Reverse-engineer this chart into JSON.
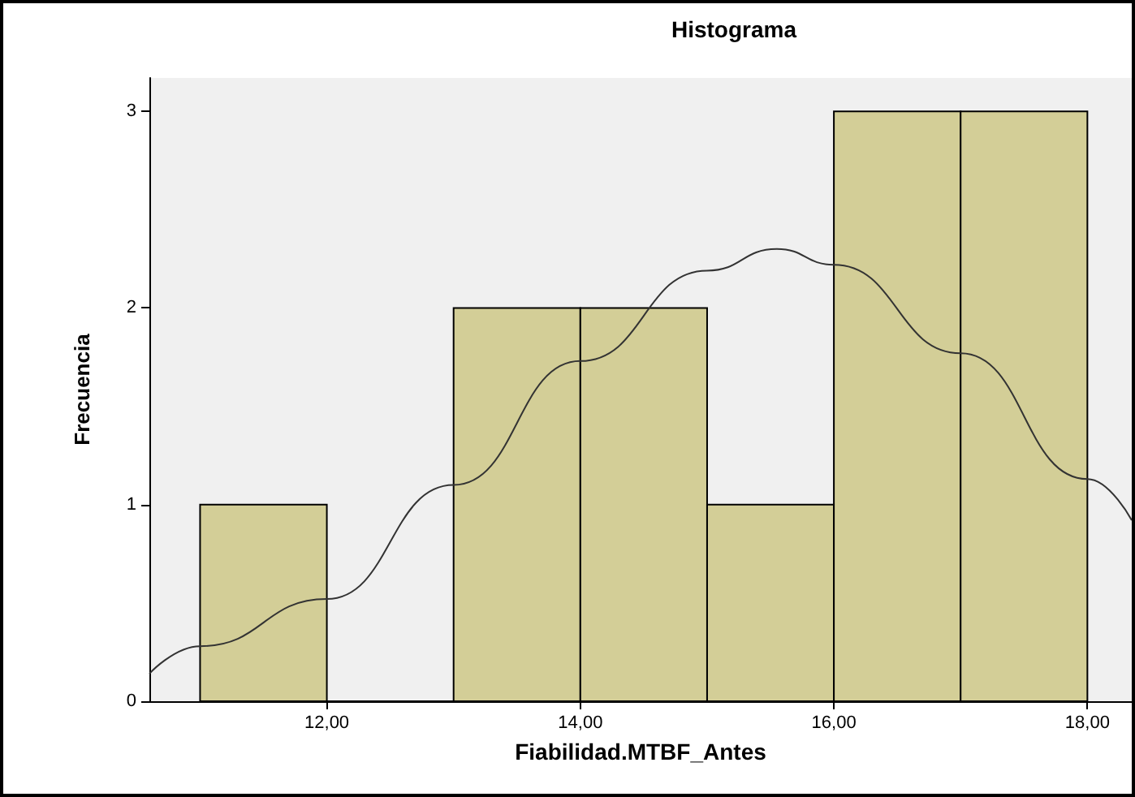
{
  "chart_data": {
    "type": "histogram",
    "title": "Histograma",
    "xlabel": "Fiabilidad.MTBF_Antes",
    "ylabel": "Frecuencia",
    "bins": [
      11,
      12,
      13,
      14,
      15,
      16,
      17,
      18
    ],
    "values": [
      1,
      0,
      2,
      2,
      1,
      3,
      3
    ],
    "color": "#d3ce97",
    "xlim": [
      10.6,
      18.35
    ],
    "xticks": [
      {
        "value": 12,
        "label": "12,00"
      },
      {
        "value": 14,
        "label": "14,00"
      },
      {
        "value": 16,
        "label": "16,00"
      },
      {
        "value": 18,
        "label": "18,00"
      }
    ],
    "ylim": [
      0,
      3.17
    ],
    "yticks": [
      0,
      1,
      2,
      3
    ],
    "grid": false,
    "marker": "none",
    "series": [
      {
        "type": "line",
        "color": "#333333",
        "x": [
          10.6,
          11,
          12,
          13,
          14,
          15,
          15.55,
          16,
          17,
          18,
          18.35
        ],
        "values": [
          0.14,
          0.28,
          0.52,
          1.1,
          1.73,
          2.19,
          2.3,
          2.22,
          1.77,
          1.13,
          0.92
        ]
      }
    ]
  }
}
